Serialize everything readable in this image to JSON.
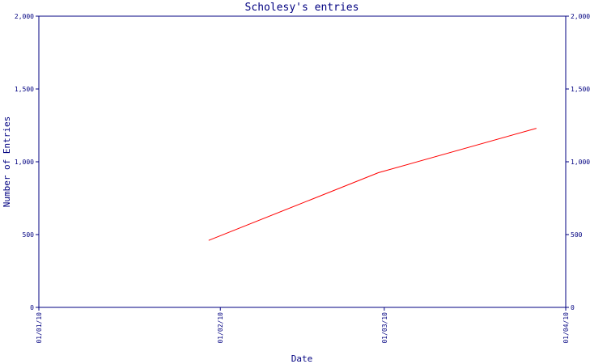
{
  "chart_data": {
    "type": "line",
    "title": "Scholesy's entries",
    "xlabel": "Date",
    "ylabel": "Number of Entries",
    "x_ticks": [
      "01/01/10",
      "01/02/10",
      "01/03/10",
      "01/04/10"
    ],
    "y_ticks": [
      "0",
      "500",
      "1,000",
      "1,500",
      "2,000"
    ],
    "ylim": [
      0,
      2000
    ],
    "xlim": [
      "2010-01-01",
      "2010-04-01"
    ],
    "grid": false,
    "series": [
      {
        "color": "#ff0000",
        "points": [
          {
            "x": "2010-01-30",
            "y": 460
          },
          {
            "x": "2010-02-28",
            "y": 925
          },
          {
            "x": "2010-03-27",
            "y": 1230
          }
        ]
      }
    ]
  },
  "colors": {
    "axis": "#000080",
    "series": "#ff0000",
    "background": "#ffffff"
  }
}
